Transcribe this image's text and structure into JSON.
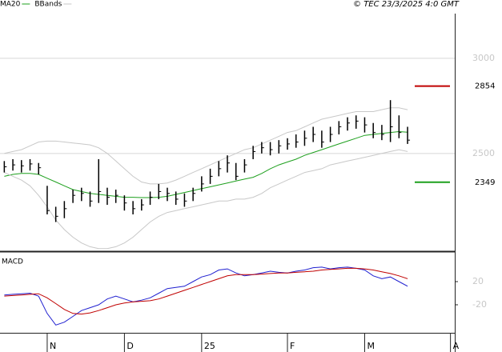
{
  "source": "© TEC 23/3/2025 4:0 GMT",
  "chart_data": [
    {
      "type": "hlc",
      "categories": [
        null,
        null,
        null,
        null,
        null,
        "N",
        null,
        null,
        null,
        null,
        null,
        null,
        null,
        null,
        "D",
        null,
        null,
        null,
        null,
        null,
        null,
        null,
        null,
        "25",
        null,
        null,
        null,
        null,
        null,
        null,
        null,
        null,
        null,
        "F",
        null,
        null,
        null,
        null,
        null,
        null,
        null,
        null,
        "M",
        null,
        null,
        null,
        null,
        null,
        null,
        null,
        null,
        null,
        "A"
      ],
      "ylim": [
        1995,
        3222
      ],
      "yticks": [
        3000,
        2500
      ],
      "grid": true,
      "price": {
        "color": "#000000",
        "high": [
          2460,
          2470,
          2465,
          2470,
          2450,
          2330,
          2220,
          2250,
          2310,
          2320,
          2300,
          2470,
          2320,
          2310,
          2280,
          2250,
          2260,
          2300,
          2340,
          2320,
          2300,
          2290,
          2320,
          2380,
          2420,
          2460,
          2490,
          2450,
          2470,
          2540,
          2560,
          2560,
          2570,
          2580,
          2600,
          2620,
          2640,
          2620,
          2640,
          2670,
          2690,
          2700,
          2690,
          2660,
          2650,
          2780,
          2700,
          2640,
          null,
          null,
          null,
          null,
          null
        ],
        "low": [
          2400,
          2410,
          2400,
          2410,
          2390,
          2180,
          2140,
          2160,
          2240,
          2250,
          2220,
          2240,
          2230,
          2240,
          2200,
          2180,
          2200,
          2230,
          2260,
          2250,
          2230,
          2220,
          2250,
          2300,
          2340,
          2380,
          2400,
          2360,
          2400,
          2470,
          2500,
          2490,
          2500,
          2520,
          2530,
          2540,
          2560,
          2530,
          2560,
          2600,
          2620,
          2630,
          2610,
          2580,
          2570,
          2560,
          2580,
          2550,
          null,
          null,
          null,
          null,
          null
        ],
        "close": [
          2430,
          2440,
          2435,
          2445,
          2425,
          2200,
          2170,
          2210,
          2280,
          2290,
          2250,
          2300,
          2270,
          2280,
          2240,
          2210,
          2230,
          2270,
          2300,
          2290,
          2260,
          2250,
          2290,
          2340,
          2380,
          2420,
          2450,
          2380,
          2440,
          2510,
          2530,
          2520,
          2540,
          2550,
          2560,
          2580,
          2600,
          2560,
          2600,
          2640,
          2660,
          2670,
          2650,
          2610,
          2600,
          2640,
          2610,
          2570,
          null,
          null,
          null,
          null,
          null
        ]
      },
      "series": [
        {
          "name": "MA20",
          "color": "#1ea01e",
          "values": [
            2380,
            2390,
            2395,
            2395,
            2390,
            2370,
            2350,
            2330,
            2310,
            2300,
            2290,
            2285,
            2280,
            2275,
            2270,
            2270,
            2268,
            2268,
            2270,
            2275,
            2285,
            2295,
            2305,
            2315,
            2325,
            2335,
            2345,
            2355,
            2365,
            2375,
            2395,
            2420,
            2440,
            2455,
            2470,
            2490,
            2505,
            2520,
            2535,
            2550,
            2565,
            2580,
            2595,
            2600,
            2605,
            2610,
            2615,
            2612,
            null,
            null,
            null,
            null,
            null
          ]
        },
        {
          "name": "BBands",
          "color": "#c8c8c8",
          "upper": [
            2500,
            2510,
            2520,
            2540,
            2560,
            2565,
            2565,
            2560,
            2555,
            2550,
            2545,
            2530,
            2500,
            2460,
            2420,
            2380,
            2350,
            2340,
            2340,
            2345,
            2360,
            2380,
            2400,
            2420,
            2440,
            2460,
            2480,
            2500,
            2520,
            2530,
            2550,
            2570,
            2590,
            2610,
            2620,
            2640,
            2660,
            2680,
            2690,
            2700,
            2710,
            2720,
            2720,
            2720,
            2730,
            2740,
            2740,
            2730,
            null,
            null,
            null,
            null,
            null
          ],
          "lower": [
            2400,
            2380,
            2360,
            2330,
            2280,
            2220,
            2150,
            2100,
            2060,
            2030,
            2010,
            2000,
            2000,
            2010,
            2030,
            2060,
            2100,
            2140,
            2170,
            2190,
            2200,
            2210,
            2220,
            2230,
            2240,
            2250,
            2250,
            2260,
            2260,
            2270,
            2290,
            2320,
            2340,
            2360,
            2380,
            2400,
            2410,
            2420,
            2440,
            2450,
            2460,
            2470,
            2480,
            2490,
            2500,
            2510,
            2520,
            2510,
            null,
            null,
            null,
            null,
            null
          ]
        }
      ],
      "annotations": [
        {
          "value": 2854,
          "color": "#c00000"
        },
        {
          "value": 2349,
          "color": "#1ea01e"
        }
      ]
    },
    {
      "type": "line",
      "title": "MACD",
      "ylim": [
        -67,
        67
      ],
      "yticks": [
        20,
        -20
      ],
      "grid": false,
      "series": [
        {
          "color": "#2020d0",
          "values": [
            -3,
            -2,
            -1,
            0,
            -5,
            -35,
            -55,
            -50,
            -40,
            -30,
            -25,
            -20,
            -10,
            -5,
            -10,
            -15,
            -12,
            -8,
            0,
            8,
            10,
            12,
            20,
            28,
            32,
            40,
            42,
            35,
            30,
            32,
            35,
            38,
            36,
            35,
            38,
            40,
            44,
            45,
            42,
            44,
            45,
            43,
            40,
            30,
            25,
            28,
            20,
            12,
            null,
            null,
            null,
            null,
            null
          ]
        },
        {
          "color": "#c00000",
          "values": [
            -5,
            -4,
            -3,
            -2,
            -1,
            -8,
            -18,
            -28,
            -35,
            -36,
            -34,
            -30,
            -25,
            -20,
            -17,
            -15,
            -14,
            -13,
            -10,
            -5,
            0,
            5,
            10,
            15,
            20,
            25,
            30,
            32,
            32,
            32,
            33,
            34,
            35,
            35,
            36,
            37,
            38,
            40,
            41,
            42,
            43,
            43,
            42,
            40,
            37,
            34,
            30,
            25,
            null,
            null,
            null,
            null,
            null
          ]
        }
      ]
    }
  ]
}
